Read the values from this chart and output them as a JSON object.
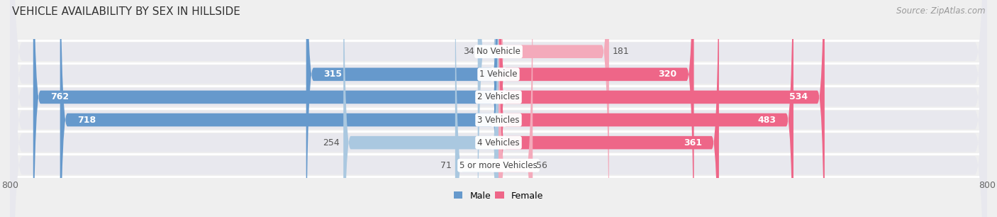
{
  "title": "VEHICLE AVAILABILITY BY SEX IN HILLSIDE",
  "source": "Source: ZipAtlas.com",
  "categories": [
    "No Vehicle",
    "1 Vehicle",
    "2 Vehicles",
    "3 Vehicles",
    "4 Vehicles",
    "5 or more Vehicles"
  ],
  "male_values": [
    34,
    315,
    762,
    718,
    254,
    71
  ],
  "female_values": [
    181,
    320,
    534,
    483,
    361,
    56
  ],
  "male_color_strong": "#6699CC",
  "male_color_light": "#AAC8E0",
  "female_color_strong": "#EE6688",
  "female_color_light": "#F4AABB",
  "male_threshold": 300,
  "female_threshold": 300,
  "xlim_left": -800,
  "xlim_right": 800,
  "background_color": "#EFEFEF",
  "row_bg_color": "#E8E8EE",
  "row_sep_color": "#FFFFFF",
  "title_fontsize": 11,
  "source_fontsize": 8.5,
  "value_fontsize": 9,
  "category_fontsize": 8.5,
  "legend_fontsize": 9,
  "value_color_dark": "#555555",
  "value_color_light": "#FFFFFF"
}
